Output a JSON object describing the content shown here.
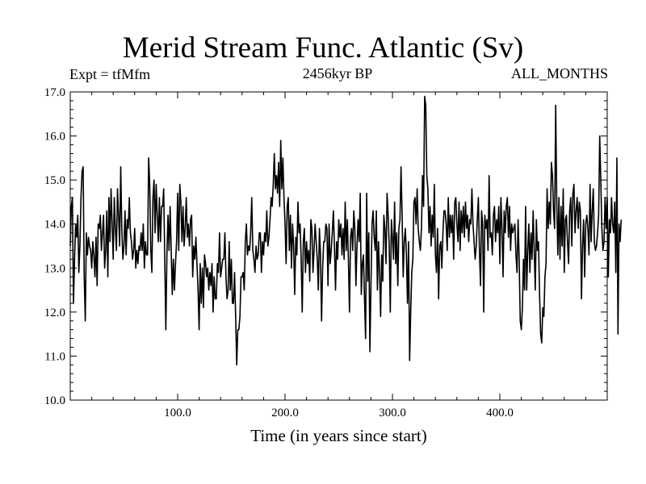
{
  "chart_data": {
    "type": "line",
    "title": "Merid Stream Func. Atlantic (Sv)",
    "subtitle": "2456kyr BP",
    "left_label": "Expt = tfMfm",
    "right_label": "ALL_MONTHS",
    "xlabel": "Time (in years since start)",
    "ylabel": "",
    "xlim": [
      0,
      500
    ],
    "ylim": [
      10.0,
      17.0
    ],
    "x_ticks": [
      100,
      200,
      300,
      400
    ],
    "x_tick_labels": [
      "100.0",
      "200.0",
      "300.0",
      "400.0"
    ],
    "y_ticks": [
      10,
      11,
      12,
      13,
      14,
      15,
      16,
      17
    ],
    "y_tick_labels": [
      "10.0",
      "11.0",
      "12.0",
      "13.0",
      "14.0",
      "15.0",
      "16.0",
      "17.0"
    ],
    "x_start": 0,
    "x_step": 1,
    "series": [
      {
        "name": "Merid Stream Func. Atlantic",
        "values": [
          13.5,
          14.4,
          14.6,
          12.2,
          13.2,
          14.0,
          13.7,
          14.2,
          12.9,
          13.5,
          14.6,
          15.2,
          15.3,
          12.8,
          11.8,
          13.8,
          13.3,
          13.7,
          13.5,
          13.4,
          13.0,
          13.6,
          13.3,
          12.8,
          13.7,
          12.6,
          14.0,
          13.9,
          14.2,
          13.4,
          13.8,
          14.2,
          13.0,
          13.4,
          14.3,
          12.8,
          14.6,
          13.6,
          14.8,
          14.0,
          13.2,
          14.6,
          13.9,
          13.4,
          14.8,
          14.2,
          13.5,
          15.3,
          13.9,
          13.2,
          13.5,
          14.3,
          13.3,
          14.1,
          13.9,
          14.6,
          13.8,
          13.6,
          13.2,
          13.4,
          13.9,
          13.0,
          13.4,
          13.1,
          13.5,
          13.4,
          13.8,
          13.4,
          14.0,
          13.0,
          13.6,
          13.3,
          13.3,
          15.5,
          14.9,
          13.4,
          12.9,
          14.6,
          15.0,
          13.8,
          14.9,
          14.2,
          13.6,
          14.6,
          13.6,
          14.4,
          14.4,
          14.8,
          13.2,
          11.6,
          13.3,
          14.2,
          13.4,
          14.4,
          13.4,
          12.4,
          13.2,
          12.5,
          13.1,
          13.6,
          14.7,
          13.4,
          14.9,
          14.5,
          13.6,
          14.4,
          13.5,
          13.9,
          14.6,
          13.7,
          14.0,
          13.5,
          14.1,
          14.2,
          12.8,
          13.5,
          13.2,
          13.7,
          13.1,
          12.5,
          11.6,
          13.1,
          12.2,
          13.0,
          12.1,
          13.3,
          13.1,
          12.8,
          13.0,
          12.5,
          12.9,
          12.6,
          13.1,
          12.0,
          12.8,
          12.3,
          12.3,
          13.1,
          12.9,
          13.8,
          12.8,
          13.0,
          13.2,
          13.2,
          13.8,
          12.8,
          12.3,
          12.5,
          13.6,
          12.5,
          13.2,
          12.2,
          12.2,
          12.9,
          11.9,
          10.8,
          11.6,
          11.6,
          11.9,
          12.8,
          12.8,
          12.9,
          12.5,
          13.6,
          14.0,
          13.3,
          13.5,
          13.4,
          13.8,
          14.6,
          13.4,
          13.2,
          12.9,
          13.5,
          13.2,
          13.3,
          13.8,
          13.8,
          12.9,
          13.6,
          13.3,
          13.8,
          13.6,
          14.3,
          13.5,
          13.7,
          14.1,
          14.6,
          14.4,
          14.9,
          15.6,
          14.8,
          15.1,
          14.7,
          15.4,
          14.4,
          15.9,
          14.8,
          15.5,
          14.6,
          14.0,
          13.1,
          14.4,
          14.6,
          13.4,
          14.2,
          13.0,
          14.0,
          13.5,
          12.4,
          13.7,
          13.3,
          14.5,
          13.8,
          14.0,
          13.2,
          12.0,
          13.6,
          13.9,
          12.9,
          13.6,
          13.1,
          13.4,
          12.7,
          14.1,
          13.9,
          12.9,
          13.4,
          14.0,
          13.6,
          13.2,
          12.5,
          13.9,
          13.3,
          11.8,
          13.0,
          13.6,
          13.6,
          14.0,
          13.9,
          12.6,
          14.0,
          13.1,
          13.4,
          13.8,
          14.3,
          13.5,
          12.5,
          13.6,
          13.2,
          14.1,
          13.7,
          14.0,
          13.3,
          13.9,
          13.2,
          14.5,
          13.4,
          14.1,
          13.2,
          12.0,
          13.7,
          13.9,
          13.4,
          14.3,
          13.9,
          12.6,
          13.5,
          14.1,
          13.6,
          14.7,
          12.4,
          13.1,
          13.3,
          12.3,
          11.4,
          14.7,
          12.7,
          13.8,
          11.1,
          12.6,
          14.0,
          14.3,
          13.7,
          13.4,
          14.3,
          12.5,
          13.6,
          12.9,
          11.9,
          13.3,
          12.7,
          14.2,
          13.9,
          13.1,
          14.7,
          14.2,
          13.5,
          12.0,
          14.1,
          13.7,
          13.2,
          14.5,
          13.1,
          13.8,
          12.6,
          13.9,
          14.1,
          15.3,
          14.2,
          12.8,
          13.6,
          13.9,
          13.3,
          12.2,
          13.6,
          10.9,
          12.0,
          12.9,
          13.2,
          14.5,
          14.6,
          14.0,
          14.8,
          13.9,
          13.6,
          13.4,
          13.9,
          15.1,
          14.4,
          16.9,
          16.7,
          15.1,
          14.8,
          13.8,
          14.4,
          13.5,
          14.2,
          13.7,
          14.9,
          13.3,
          12.9,
          13.9,
          12.3,
          13.5,
          13.6,
          13.0,
          13.8,
          14.3,
          14.3,
          14.0,
          13.4,
          14.6,
          13.7,
          14.2,
          13.8,
          14.2,
          13.2,
          14.5,
          14.6,
          14.0,
          13.6,
          14.5,
          13.4,
          14.3,
          13.8,
          14.4,
          13.7,
          14.5,
          13.9,
          14.2,
          13.6,
          14.1,
          14.0,
          14.8,
          14.0,
          13.6,
          13.2,
          13.5,
          14.1,
          14.6,
          13.4,
          12.6,
          14.3,
          14.0,
          12.0,
          14.2,
          13.9,
          14.1,
          13.4,
          15.1,
          13.7,
          13.8,
          13.3,
          14.2,
          14.4,
          13.6,
          14.1,
          13.8,
          14.4,
          13.1,
          14.6,
          13.9,
          12.8,
          14.3,
          13.8,
          14.4,
          14.6,
          13.7,
          14.4,
          13.4,
          14.0,
          13.8,
          13.9,
          14.0,
          13.3,
          12.9,
          14.1,
          13.2,
          11.8,
          11.6,
          12.1,
          13.2,
          12.5,
          14.4,
          12.5,
          13.4,
          14.0,
          12.9,
          13.8,
          13.2,
          14.3,
          13.4,
          12.5,
          14.1,
          13.4,
          13.6,
          12.4,
          11.5,
          11.3,
          12.1,
          11.9,
          12.8,
          13.1,
          14.8,
          13.9,
          14.5,
          14.0,
          15.4,
          15.1,
          14.3,
          13.9,
          16.7,
          14.5,
          13.3,
          14.6,
          13.2,
          14.4,
          13.5,
          14.8,
          12.9,
          14.1,
          14.2,
          13.6,
          13.1,
          14.3,
          14.6,
          13.5,
          14.7,
          14.9,
          13.8,
          14.3,
          14.6,
          13.9,
          14.5,
          14.3,
          12.3,
          13.5,
          14.1,
          12.8,
          14.0,
          14.2,
          13.9,
          13.3,
          14.9,
          13.6,
          14.3,
          14.8,
          13.6,
          13.4,
          13.5,
          13.8,
          14.2,
          16.0,
          15.0,
          13.9,
          13.4,
          13.6,
          14.6,
          13.9,
          14.6,
          12.8,
          14.1,
          13.8,
          14.6,
          14.0,
          13.8,
          14.5,
          12.9,
          15.5,
          11.5,
          14.0,
          13.6,
          14.1
        ]
      }
    ]
  }
}
